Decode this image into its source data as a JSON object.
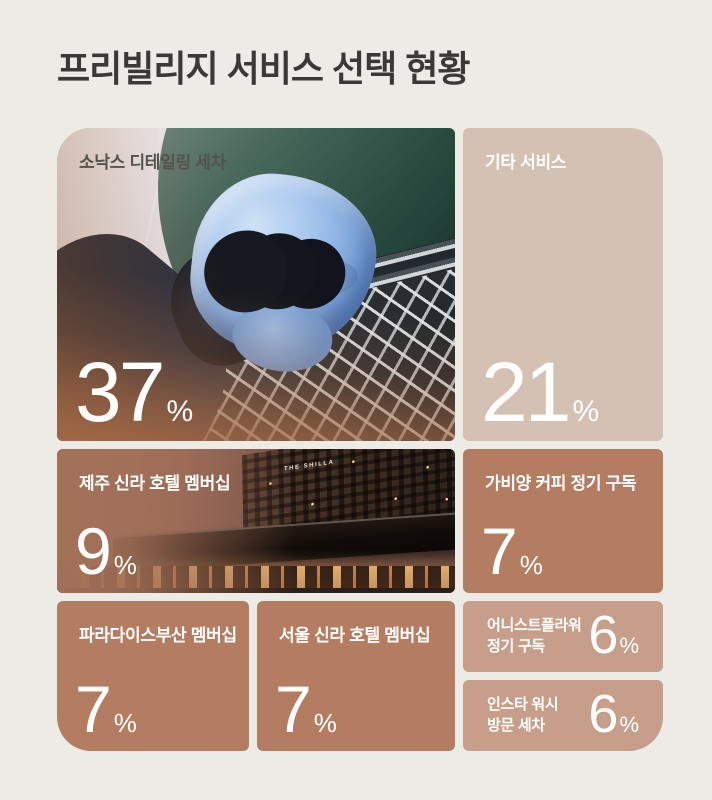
{
  "page": {
    "title": "프리빌리지 서비스 선택 현황",
    "background": "#edebe6",
    "title_color": "#3a3936"
  },
  "colors": {
    "terracotta": "#b47d62",
    "dusty_rose": "#c79e8a",
    "blush": "#d5c0b4",
    "label_light": "#ffffff",
    "label_dark": "#55534c"
  },
  "tiles": [
    {
      "label": "소낙스 디테일링 세차",
      "value": "37",
      "unit": "%"
    },
    {
      "label": "기타 서비스",
      "value": "21",
      "unit": "%"
    },
    {
      "label": "제주 신라 호텔 멤버십",
      "value": "9",
      "unit": "%"
    },
    {
      "label": "가비양 커피 정기 구독",
      "value": "7",
      "unit": "%"
    },
    {
      "label": "파라다이스부산 멤버십",
      "value": "7",
      "unit": "%"
    },
    {
      "label": "서울 신라 호텔 멤버십",
      "value": "7",
      "unit": "%"
    },
    {
      "label_line1": "어니스트플라워",
      "label_line2": "정기 구독",
      "value": "6",
      "unit": "%"
    },
    {
      "label_line1": "인스타 워시",
      "label_line2": "방문 세차",
      "value": "6",
      "unit": "%"
    }
  ],
  "photos": {
    "hotel": {
      "sign": "THE SHILLA"
    }
  },
  "chart_data": {
    "type": "treemap",
    "title": "프리빌리지 서비스 선택 현황",
    "unit": "%",
    "categories": [
      "소낙스 디테일링 세차",
      "기타 서비스",
      "제주 신라 호텔 멤버십",
      "가비양 커피 정기 구독",
      "파라다이스부산 멤버십",
      "서울 신라 호텔 멤버십",
      "어니스트플라워 정기 구독",
      "인스타 워시 방문 세차"
    ],
    "values": [
      37,
      21,
      9,
      7,
      7,
      7,
      6,
      6
    ],
    "legend": "none",
    "value_labels_shown": true
  }
}
